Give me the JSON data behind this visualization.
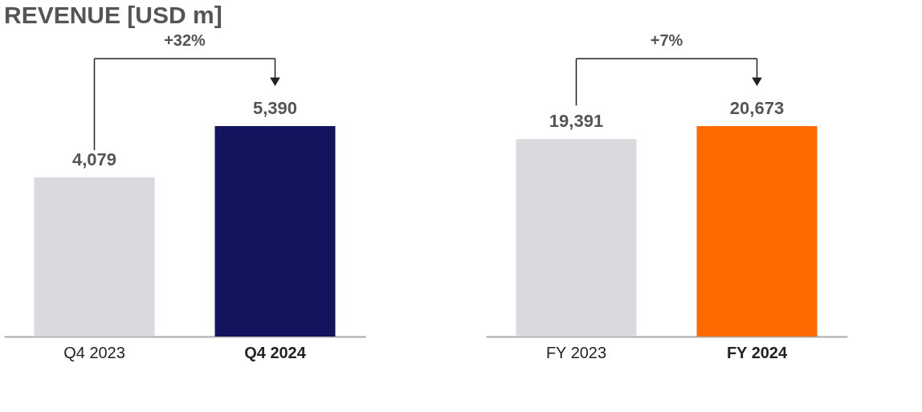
{
  "chart_data": [
    {
      "type": "bar",
      "title": "REVENUE [USD m]",
      "categories": [
        "Q4 2023",
        "Q4 2024"
      ],
      "values": [
        4079,
        5390
      ],
      "colors": [
        "#d9d9de",
        "#12145e"
      ],
      "value_labels": [
        "4,079",
        "5,390"
      ],
      "annotations": [
        "+32%"
      ]
    },
    {
      "type": "bar",
      "categories": [
        "FY 2023",
        "FY 2024"
      ],
      "values": [
        19391,
        20673
      ],
      "colors": [
        "#d9d9de",
        "#ff6a00"
      ],
      "value_labels": [
        "19,391",
        "20,673"
      ],
      "annotations": [
        "+7%"
      ]
    }
  ]
}
